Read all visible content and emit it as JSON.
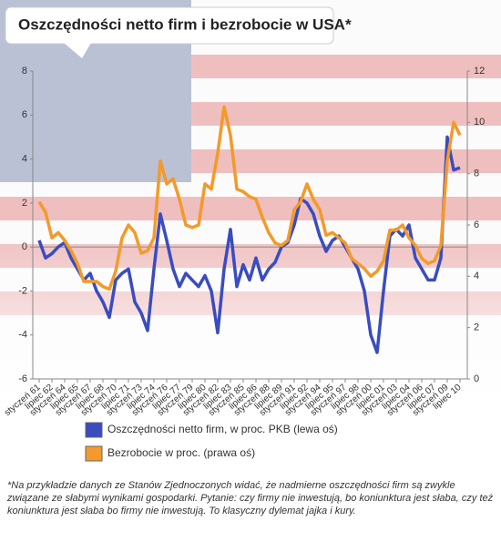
{
  "chart_data": {
    "type": "line",
    "title": "Oszczędności netto firm i bezrobocie w USA*",
    "footnote": "*Na przykładzie danych ze Stanów Zjednoczonych widać, że nadmierne oszczędności firm są zwykle związane ze słabymi wynikami gospodarki. Pytanie: czy firmy nie inwestują, bo koniunktura jest słaba, czy też koniunktura jest słaba bo firmy nie inwestują. To klasyczny dylemat jajka i kury.",
    "categories": [
      "styczeń 61",
      null,
      "lipiec 62",
      null,
      "styczeń 64",
      null,
      "lipiec 65",
      null,
      "styczeń 67",
      null,
      "lipiec 68",
      null,
      "styczeń 70",
      null,
      "lipiec 71",
      null,
      "styczeń 73",
      null,
      "lipiec 74",
      null,
      "styczeń 76",
      null,
      "lipiec 77",
      null,
      "styczeń 79",
      null,
      "lipiec 80",
      null,
      "styczeń 82",
      null,
      "lipiec 83",
      null,
      "styczeń 85",
      null,
      "lipiec 86",
      null,
      "styczeń 88",
      null,
      "lipiec 89",
      null,
      "styczeń 91",
      null,
      "lipiec 92",
      null,
      "styczeń 94",
      null,
      "lipiec 95",
      null,
      "styczeń 97",
      null,
      "lipiec 98",
      null,
      "styczeń 00",
      null,
      "lipiec 01",
      null,
      "styczeń 03",
      null,
      "lipiec 04",
      null,
      "styczeń 06",
      null,
      "lipiec 07",
      null,
      "styczeń 09",
      null,
      "lipiec 10"
    ],
    "series": [
      {
        "name": "Oszczędności netto firm, w proc. PKB (lewa oś)",
        "color": "#3a4cc0",
        "values": [
          0.3,
          -0.5,
          -0.3,
          0,
          0.2,
          -0.5,
          -1,
          -1.5,
          -1.2,
          -2,
          -2.5,
          -3.2,
          -1.5,
          -1.2,
          -1,
          -2.5,
          -3,
          -3.8,
          -1,
          1.5,
          0.3,
          -1,
          -1.8,
          -1.2,
          -1.5,
          -1.8,
          -1.3,
          -2,
          -3.9,
          -1,
          0.8,
          -1.8,
          -0.8,
          -1.5,
          -0.5,
          -1.5,
          -1,
          -0.7,
          0,
          0.2,
          1,
          2.2,
          2,
          1.5,
          0.5,
          -0.2,
          0.3,
          0.5,
          0,
          -0.5,
          -1,
          -2,
          -4,
          -4.8,
          -2,
          0.5,
          0.8,
          0.5,
          1,
          -0.5,
          -1,
          -1.5,
          -1.5,
          -0.5,
          5,
          3.5,
          3.6
        ]
      },
      {
        "name": "Bezrobocie w proc. (prawa oś)",
        "color": "#f39a2a",
        "axis": "y2",
        "values": [
          6.9,
          6.5,
          5.5,
          5.7,
          5.4,
          5.0,
          4.5,
          3.8,
          3.8,
          3.8,
          3.6,
          3.5,
          4.2,
          5.5,
          6.0,
          5.7,
          4.9,
          5.0,
          5.5,
          8.5,
          7.6,
          7.8,
          7.0,
          6.0,
          5.9,
          6.0,
          7.6,
          7.4,
          8.8,
          10.6,
          9.5,
          7.4,
          7.3,
          7.1,
          7.0,
          6.3,
          5.7,
          5.3,
          5.2,
          5.4,
          6.6,
          6.9,
          7.6,
          7.0,
          6.6,
          5.6,
          5.7,
          5.5,
          5.3,
          4.7,
          4.5,
          4.3,
          4.0,
          4.2,
          4.6,
          5.8,
          5.8,
          6.0,
          5.5,
          5.2,
          4.7,
          4.5,
          4.6,
          5.2,
          8.5,
          10.0,
          9.5
        ]
      }
    ],
    "ylim": [
      -6,
      8
    ],
    "yticks": [
      -6,
      -4,
      -2,
      0,
      2,
      4,
      6,
      8
    ],
    "y2lim": [
      0,
      12
    ],
    "y2ticks": [
      0,
      2,
      4,
      6,
      8,
      10,
      12
    ]
  }
}
